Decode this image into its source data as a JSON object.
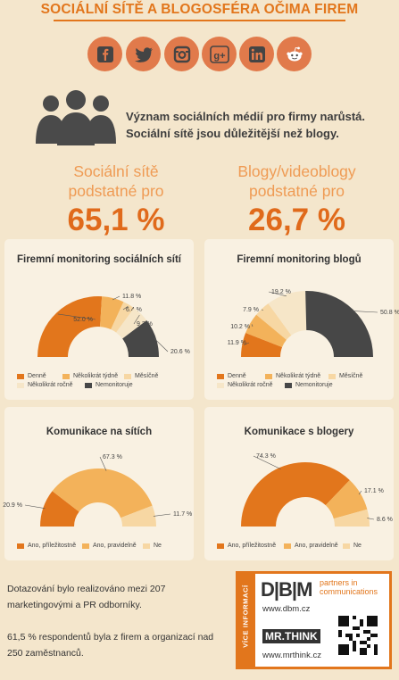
{
  "title": "SOCIÁLNÍ SÍTĚ A BLOGOSFÉRA OČIMA FIREM",
  "social_icons": [
    "facebook-icon",
    "twitter-icon",
    "instagram-icon",
    "google-plus-icon",
    "linkedin-icon",
    "reddit-icon"
  ],
  "statement": {
    "line1": "Význam sociálních médií pro firmy narůstá.",
    "line2": "Sociální sítě jsou důležitější než blogy."
  },
  "big_stats": {
    "left": {
      "label1": "Sociální sítě",
      "label2": "podstatné pro",
      "value": "65,1 %"
    },
    "right": {
      "label1": "Blogy/videoblogy",
      "label2": "podstatné pro",
      "value": "26,7 %"
    }
  },
  "colors": {
    "orange": "#e2761c",
    "light_orange": "#f3b25a",
    "pale": "#f7d7a3",
    "cream": "#f6e6c8",
    "dark": "#474747"
  },
  "legend_monitoring": [
    "Denně",
    "Několikrát týdně",
    "Měsíčně",
    "Několikrát ročně",
    "Nemonitoruje"
  ],
  "legend_communication": [
    "Ano, příležitostně",
    "Ano, pravidelně",
    "Ne"
  ],
  "chart_data": [
    {
      "type": "pie",
      "title": "Firemní monitoring sociálních sítí",
      "categories": [
        "Denně",
        "Několikrát týdně",
        "Měsíčně",
        "Několikrát ročně",
        "Nemonitoruje"
      ],
      "values": [
        52.0,
        11.8,
        6.4,
        9.3,
        20.6
      ],
      "labels": [
        "52.0 %",
        "11.8 %",
        "6.4 %",
        "9.3 %",
        "20.6 %"
      ]
    },
    {
      "type": "pie",
      "title": "Firemní monitoring blogů",
      "categories": [
        "Denně",
        "Několikrát týdně",
        "Měsíčně",
        "Několikrát ročně",
        "Nemonitoruje"
      ],
      "values": [
        11.9,
        10.2,
        7.9,
        19.2,
        50.8
      ],
      "labels": [
        "11.9 %",
        "10.2 %",
        "7.9 %",
        "19.2 %",
        "50.8 %"
      ]
    },
    {
      "type": "pie",
      "title": "Komunikace na sítích",
      "categories": [
        "Ano, příležitostně",
        "Ano, pravidelně",
        "Ne"
      ],
      "values": [
        20.9,
        67.3,
        11.7
      ],
      "labels": [
        "20.9 %",
        "67.3 %",
        "11.7 %"
      ]
    },
    {
      "type": "pie",
      "title": "Komunikace s blogery",
      "categories": [
        "Ano, příležitostně",
        "Ano, pravidelně",
        "Ne"
      ],
      "values": [
        74.3,
        17.1,
        8.6
      ],
      "labels": [
        "74.3 %",
        "17.1 %",
        "8.6 %"
      ]
    }
  ],
  "footer": {
    "p1": "Dotazování bylo realizováno mezi 207 marketingovými a PR odborníky.",
    "p2": "61,5 % respondentů byla z firem a organizací nad 250 zaměstnanců."
  },
  "infobox": {
    "vice": "VÍCE INFORMACÍ",
    "dbm_logo": "D|B|M",
    "dbm_tagline": "partners in communications",
    "dbm_url": "www.dbm.cz",
    "mrthink_logo": "MR.THINK",
    "mrthink_url": "www.mrthink.cz"
  }
}
